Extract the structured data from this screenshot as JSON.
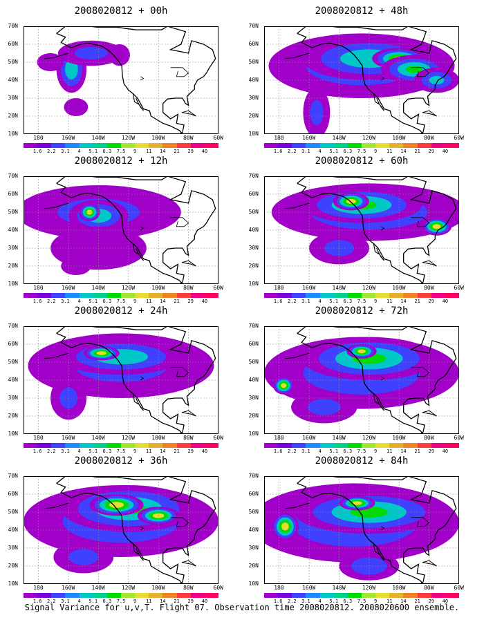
{
  "caption": "Signal Variance for u,v,T. Flight 07. Observation time 2008020812. 2008020600 ensemble.",
  "lat_labels": [
    "70N",
    "60N",
    "50N",
    "40N",
    "30N",
    "20N",
    "10N"
  ],
  "lon_labels": [
    "180",
    "160W",
    "140W",
    "120W",
    "100W",
    "80W",
    "60W"
  ],
  "colorbar": {
    "levels": [
      "1.6",
      "2.2",
      "3.1",
      "4",
      "5.1",
      "6.3",
      "7.5",
      "9",
      "11",
      "14",
      "21",
      "29",
      "40"
    ],
    "colors": [
      "#a000c8",
      "#7c00dc",
      "#4040ff",
      "#1e8cff",
      "#00c8c8",
      "#00d28c",
      "#00dc00",
      "#a0e632",
      "#e6dc32",
      "#e6af2d",
      "#f08228",
      "#fa3c3c",
      "#f00082",
      "#ff0064"
    ]
  },
  "panels": [
    {
      "title": "2008020812 + 00h",
      "blobs": [
        {
          "lon": -158,
          "lat": 46,
          "rx": 10,
          "ry": 13,
          "v": 5
        },
        {
          "lon": -145,
          "lat": 55,
          "rx": 22,
          "ry": 7,
          "v": 2
        },
        {
          "lon": -172,
          "lat": 50,
          "rx": 9,
          "ry": 5,
          "v": 1
        },
        {
          "lon": -155,
          "lat": 25,
          "rx": 8,
          "ry": 5,
          "v": 1
        },
        {
          "lon": -126,
          "lat": 54,
          "rx": 7,
          "ry": 6,
          "v": 1
        }
      ]
    },
    {
      "title": "2008020812 + 48h",
      "blobs": [
        {
          "lon": -125,
          "lat": 48,
          "rx": 62,
          "ry": 18,
          "v": 3
        },
        {
          "lon": -120,
          "lat": 52,
          "rx": 45,
          "ry": 12,
          "v": 5
        },
        {
          "lon": -100,
          "lat": 52,
          "rx": 18,
          "ry": 6,
          "v": 8
        },
        {
          "lon": -90,
          "lat": 46,
          "rx": 22,
          "ry": 8,
          "v": 6
        },
        {
          "lon": -155,
          "lat": 22,
          "rx": 9,
          "ry": 14,
          "v": 2
        },
        {
          "lon": -75,
          "lat": 40,
          "rx": 15,
          "ry": 7,
          "v": 4
        }
      ]
    },
    {
      "title": "2008020812 + 12h",
      "blobs": [
        {
          "lon": -140,
          "lat": 50,
          "rx": 55,
          "ry": 15,
          "v": 2
        },
        {
          "lon": -140,
          "lat": 48,
          "rx": 20,
          "ry": 9,
          "v": 5
        },
        {
          "lon": -146,
          "lat": 50,
          "rx": 7,
          "ry": 5,
          "v": 9
        },
        {
          "lon": -140,
          "lat": 30,
          "rx": 32,
          "ry": 12,
          "v": 1
        },
        {
          "lon": -155,
          "lat": 20,
          "rx": 10,
          "ry": 5,
          "v": 1
        }
      ]
    },
    {
      "title": "2008020812 + 60h",
      "blobs": [
        {
          "lon": -120,
          "lat": 50,
          "rx": 65,
          "ry": 16,
          "v": 3
        },
        {
          "lon": -125,
          "lat": 54,
          "rx": 40,
          "ry": 10,
          "v": 6
        },
        {
          "lon": -132,
          "lat": 56,
          "rx": 12,
          "ry": 5,
          "v": 9
        },
        {
          "lon": -75,
          "lat": 42,
          "rx": 10,
          "ry": 5,
          "v": 9
        },
        {
          "lon": -140,
          "lat": 30,
          "rx": 20,
          "ry": 9,
          "v": 2
        }
      ]
    },
    {
      "title": "2008020812 + 24h",
      "blobs": [
        {
          "lon": -125,
          "lat": 48,
          "rx": 62,
          "ry": 18,
          "v": 2
        },
        {
          "lon": -125,
          "lat": 53,
          "rx": 42,
          "ry": 10,
          "v": 5
        },
        {
          "lon": -138,
          "lat": 55,
          "rx": 12,
          "ry": 4,
          "v": 9
        },
        {
          "lon": -160,
          "lat": 30,
          "rx": 12,
          "ry": 12,
          "v": 2
        }
      ]
    },
    {
      "title": "2008020812 + 72h",
      "blobs": [
        {
          "lon": -125,
          "lat": 44,
          "rx": 65,
          "ry": 20,
          "v": 3
        },
        {
          "lon": -120,
          "lat": 52,
          "rx": 45,
          "ry": 12,
          "v": 6
        },
        {
          "lon": -125,
          "lat": 56,
          "rx": 10,
          "ry": 4,
          "v": 9
        },
        {
          "lon": -177,
          "lat": 37,
          "rx": 7,
          "ry": 5,
          "v": 9
        },
        {
          "lon": -150,
          "lat": 25,
          "rx": 22,
          "ry": 9,
          "v": 2
        }
      ]
    },
    {
      "title": "2008020812 + 36h",
      "blobs": [
        {
          "lon": -125,
          "lat": 45,
          "rx": 65,
          "ry": 20,
          "v": 3
        },
        {
          "lon": -120,
          "lat": 52,
          "rx": 45,
          "ry": 13,
          "v": 6
        },
        {
          "lon": -128,
          "lat": 54,
          "rx": 18,
          "ry": 6,
          "v": 9
        },
        {
          "lon": -100,
          "lat": 48,
          "rx": 14,
          "ry": 5,
          "v": 9
        },
        {
          "lon": -150,
          "lat": 25,
          "rx": 20,
          "ry": 9,
          "v": 2
        }
      ]
    },
    {
      "title": "2008020812 + 84h",
      "blobs": [
        {
          "lon": -130,
          "lat": 44,
          "rx": 70,
          "ry": 22,
          "v": 3
        },
        {
          "lon": -120,
          "lat": 50,
          "rx": 50,
          "ry": 12,
          "v": 6
        },
        {
          "lon": -128,
          "lat": 55,
          "rx": 12,
          "ry": 4,
          "v": 9
        },
        {
          "lon": -176,
          "lat": 42,
          "rx": 9,
          "ry": 8,
          "v": 9
        },
        {
          "lon": -120,
          "lat": 20,
          "rx": 20,
          "ry": 8,
          "v": 3
        }
      ]
    }
  ]
}
